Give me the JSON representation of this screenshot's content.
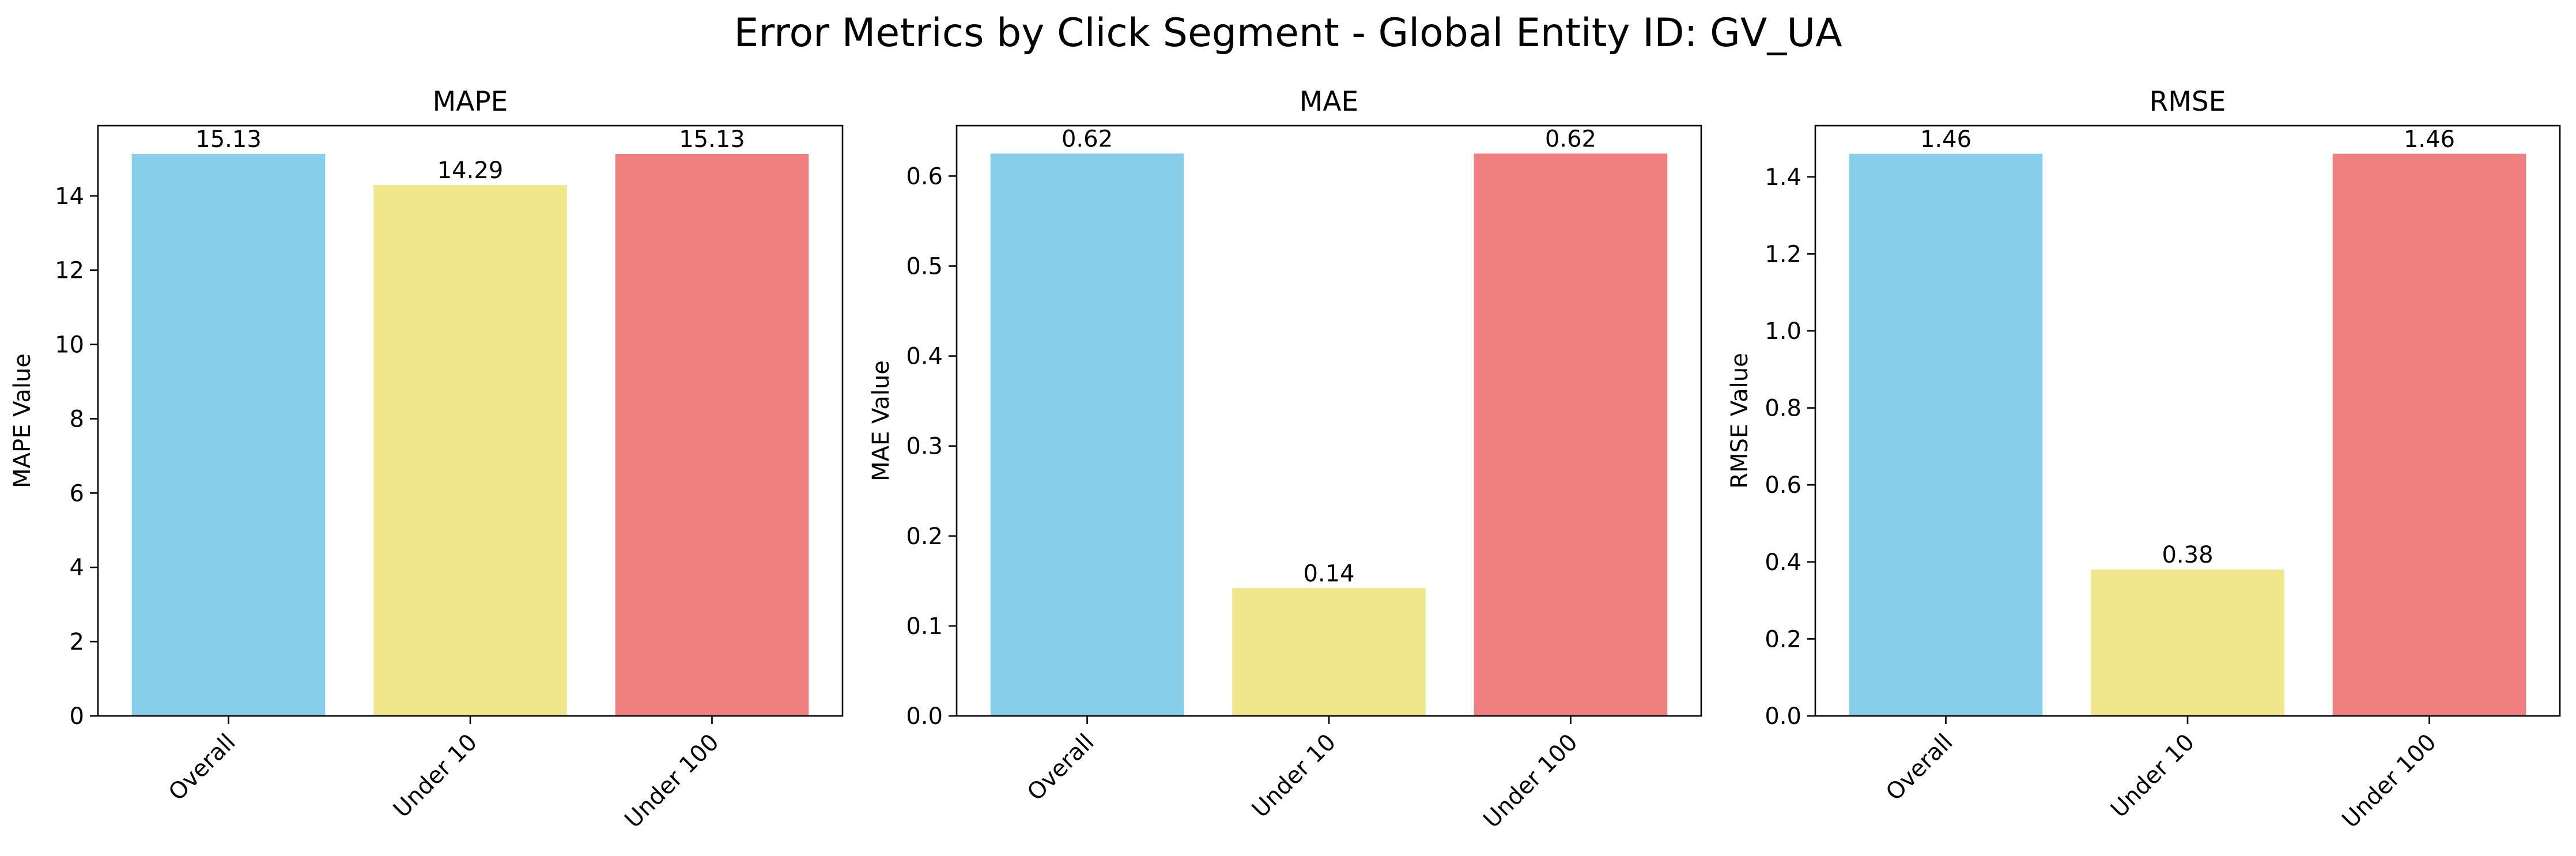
{
  "figure": {
    "title": "Error Metrics by Click Segment - Global Entity ID: GV_UA"
  },
  "chart_data": [
    {
      "type": "bar",
      "title": "MAPE",
      "xlabel": "",
      "ylabel": "MAPE Value",
      "categories": [
        "Overall",
        "Under 10",
        "Under 100"
      ],
      "values": [
        15.13,
        14.29,
        15.13
      ],
      "value_labels": [
        "15.13",
        "14.29",
        "15.13"
      ],
      "colors": [
        "#87CEEB",
        "#F0E68C",
        "#F08080"
      ],
      "ylim": [
        0,
        15.89
      ],
      "yticks": [
        0,
        2,
        4,
        6,
        8,
        10,
        12,
        14
      ],
      "ytick_labels": [
        "0",
        "2",
        "4",
        "6",
        "8",
        "10",
        "12",
        "14"
      ],
      "grid": false,
      "xtick_rotation": 45
    },
    {
      "type": "bar",
      "title": "MAE",
      "xlabel": "",
      "ylabel": "MAE Value",
      "categories": [
        "Overall",
        "Under 10",
        "Under 100"
      ],
      "values": [
        0.625,
        0.142,
        0.625
      ],
      "value_labels": [
        "0.62",
        "0.14",
        "0.62"
      ],
      "colors": [
        "#87CEEB",
        "#F0E68C",
        "#F08080"
      ],
      "ylim": [
        0,
        0.656
      ],
      "yticks": [
        0.0,
        0.1,
        0.2,
        0.3,
        0.4,
        0.5,
        0.6
      ],
      "ytick_labels": [
        "0.0",
        "0.1",
        "0.2",
        "0.3",
        "0.4",
        "0.5",
        "0.6"
      ],
      "grid": false,
      "xtick_rotation": 45
    },
    {
      "type": "bar",
      "title": "RMSE",
      "xlabel": "",
      "ylabel": "RMSE Value",
      "categories": [
        "Overall",
        "Under 10",
        "Under 100"
      ],
      "values": [
        1.46,
        0.38,
        1.46
      ],
      "value_labels": [
        "1.46",
        "0.38",
        "1.46"
      ],
      "colors": [
        "#87CEEB",
        "#F0E68C",
        "#F08080"
      ],
      "ylim": [
        0,
        1.533
      ],
      "yticks": [
        0.0,
        0.2,
        0.4,
        0.6,
        0.8,
        1.0,
        1.2,
        1.4
      ],
      "ytick_labels": [
        "0.0",
        "0.2",
        "0.4",
        "0.6",
        "0.8",
        "1.0",
        "1.2",
        "1.4"
      ],
      "grid": false,
      "xtick_rotation": 45
    }
  ]
}
